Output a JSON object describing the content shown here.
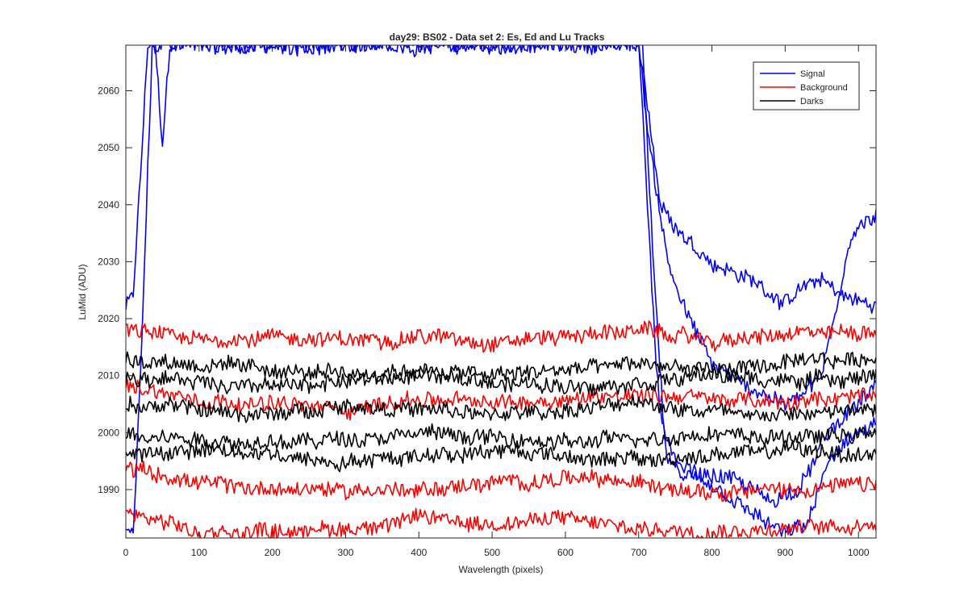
{
  "chart_data": {
    "type": "line",
    "title": "day29: BS02 - Data set 2: Es, Ed and Lu Tracks",
    "xlabel": "Wavelength (pixels)",
    "ylabel": "LuMid (ADU)",
    "xlim": [
      0,
      1024
    ],
    "ylim": [
      1981.5,
      2068
    ],
    "x_ticks": [
      0,
      100,
      200,
      300,
      400,
      500,
      600,
      700,
      800,
      900,
      1000
    ],
    "y_ticks": [
      1990,
      2000,
      2010,
      2020,
      2030,
      2040,
      2050,
      2060
    ],
    "grid": false,
    "legend_position": "top-right",
    "colors": {
      "Signal": "#0000ff",
      "Background": "#ff0000",
      "Darks": "#000000"
    },
    "legend": [
      {
        "name": "Signal",
        "color": "#0000ff"
      },
      {
        "name": "Background",
        "color": "#ff0000"
      },
      {
        "name": "Darks",
        "color": "#000000"
      }
    ],
    "series": [
      {
        "name": "Signal",
        "group": "Signal",
        "points": [
          [
            0,
            2022
          ],
          [
            10,
            2024
          ],
          [
            20,
            2045
          ],
          [
            30,
            2068
          ],
          [
            40,
            2068
          ],
          [
            50,
            2050
          ],
          [
            60,
            2068
          ],
          [
            70,
            2068
          ],
          [
            700,
            2068
          ],
          [
            715,
            2055
          ],
          [
            730,
            2040
          ],
          [
            760,
            2035
          ],
          [
            800,
            2030
          ],
          [
            850,
            2027
          ],
          [
            900,
            2023
          ],
          [
            950,
            2027
          ],
          [
            980,
            2024
          ],
          [
            1024,
            2022
          ]
        ]
      },
      {
        "name": "Signal",
        "group": "Signal",
        "points": [
          [
            0,
            1983
          ],
          [
            10,
            1982
          ],
          [
            20,
            2010
          ],
          [
            28,
            2040
          ],
          [
            36,
            2068
          ],
          [
            700,
            2068
          ],
          [
            715,
            2050
          ],
          [
            740,
            2030
          ],
          [
            770,
            2020
          ],
          [
            800,
            2012
          ],
          [
            850,
            2008
          ],
          [
            900,
            2005
          ],
          [
            950,
            2010
          ],
          [
            990,
            2035
          ],
          [
            1010,
            2037
          ],
          [
            1024,
            2038
          ]
        ]
      },
      {
        "name": "Signal",
        "group": "Signal",
        "points": [
          [
            700,
            2068
          ],
          [
            712,
            2040
          ],
          [
            725,
            2010
          ],
          [
            740,
            1995
          ],
          [
            780,
            1993
          ],
          [
            830,
            1992
          ],
          [
            880,
            1988
          ],
          [
            920,
            1990
          ],
          [
            960,
            2000
          ],
          [
            1000,
            2005
          ],
          [
            1024,
            2008
          ]
        ]
      },
      {
        "name": "Signal",
        "group": "Signal",
        "points": [
          [
            705,
            2068
          ],
          [
            720,
            2030
          ],
          [
            735,
            2000
          ],
          [
            760,
            1992
          ],
          [
            800,
            1990
          ],
          [
            850,
            1986
          ],
          [
            900,
            1982
          ],
          [
            930,
            1984
          ],
          [
            960,
            1995
          ],
          [
            1000,
            2000
          ],
          [
            1024,
            2002
          ]
        ]
      },
      {
        "name": "Background",
        "group": "Background",
        "points": [
          [
            0,
            2018
          ],
          [
            100,
            2016
          ],
          [
            200,
            2017
          ],
          [
            300,
            2016
          ],
          [
            400,
            2017
          ],
          [
            500,
            2016
          ],
          [
            600,
            2017
          ],
          [
            700,
            2018
          ],
          [
            800,
            2016
          ],
          [
            900,
            2017
          ],
          [
            1024,
            2018
          ]
        ]
      },
      {
        "name": "Background",
        "group": "Background",
        "points": [
          [
            0,
            2008
          ],
          [
            100,
            2006
          ],
          [
            200,
            2005
          ],
          [
            300,
            2004
          ],
          [
            400,
            2006
          ],
          [
            500,
            2005
          ],
          [
            600,
            2006
          ],
          [
            700,
            2007
          ],
          [
            800,
            2006
          ],
          [
            900,
            2005
          ],
          [
            1024,
            2007
          ]
        ]
      },
      {
        "name": "Background",
        "group": "Background",
        "points": [
          [
            0,
            1994
          ],
          [
            100,
            1991
          ],
          [
            200,
            1990
          ],
          [
            300,
            1990
          ],
          [
            400,
            1990
          ],
          [
            500,
            1991
          ],
          [
            600,
            1992
          ],
          [
            700,
            1991
          ],
          [
            800,
            1990
          ],
          [
            900,
            1990
          ],
          [
            1024,
            1991
          ]
        ]
      },
      {
        "name": "Background",
        "group": "Background",
        "points": [
          [
            0,
            1986
          ],
          [
            100,
            1982
          ],
          [
            200,
            1983
          ],
          [
            300,
            1983
          ],
          [
            400,
            1985
          ],
          [
            500,
            1984
          ],
          [
            600,
            1985
          ],
          [
            700,
            1983
          ],
          [
            800,
            1983
          ],
          [
            900,
            1983
          ],
          [
            1024,
            1984
          ]
        ]
      },
      {
        "name": "Darks",
        "group": "Darks",
        "points": [
          [
            0,
            2013
          ],
          [
            100,
            2012
          ],
          [
            200,
            2011
          ],
          [
            300,
            2010
          ],
          [
            400,
            2011
          ],
          [
            500,
            2010
          ],
          [
            600,
            2011
          ],
          [
            700,
            2012
          ],
          [
            800,
            2011
          ],
          [
            900,
            2012
          ],
          [
            1024,
            2013
          ]
        ]
      },
      {
        "name": "Darks",
        "group": "Darks",
        "points": [
          [
            0,
            2010
          ],
          [
            100,
            2009
          ],
          [
            200,
            2008
          ],
          [
            300,
            2009
          ],
          [
            400,
            2010
          ],
          [
            500,
            2009
          ],
          [
            600,
            2008
          ],
          [
            700,
            2009
          ],
          [
            800,
            2010
          ],
          [
            900,
            2009
          ],
          [
            1024,
            2010
          ]
        ]
      },
      {
        "name": "Darks",
        "group": "Darks",
        "points": [
          [
            0,
            2005
          ],
          [
            100,
            2004
          ],
          [
            200,
            2003
          ],
          [
            300,
            2005
          ],
          [
            400,
            2004
          ],
          [
            500,
            2003
          ],
          [
            600,
            2004
          ],
          [
            700,
            2005
          ],
          [
            800,
            2004
          ],
          [
            900,
            2003
          ],
          [
            1024,
            2004
          ]
        ]
      },
      {
        "name": "Darks",
        "group": "Darks",
        "points": [
          [
            0,
            2000
          ],
          [
            100,
            1999
          ],
          [
            200,
            1998
          ],
          [
            300,
            1999
          ],
          [
            400,
            2000
          ],
          [
            500,
            1999
          ],
          [
            600,
            1998
          ],
          [
            700,
            1999
          ],
          [
            800,
            2000
          ],
          [
            900,
            1999
          ],
          [
            1024,
            2000
          ]
        ]
      },
      {
        "name": "Darks",
        "group": "Darks",
        "points": [
          [
            0,
            1996
          ],
          [
            100,
            1997
          ],
          [
            200,
            1996
          ],
          [
            300,
            1995
          ],
          [
            400,
            1996
          ],
          [
            500,
            1997
          ],
          [
            600,
            1996
          ],
          [
            700,
            1995
          ],
          [
            800,
            1996
          ],
          [
            900,
            1997
          ],
          [
            1024,
            1996
          ]
        ]
      }
    ]
  }
}
